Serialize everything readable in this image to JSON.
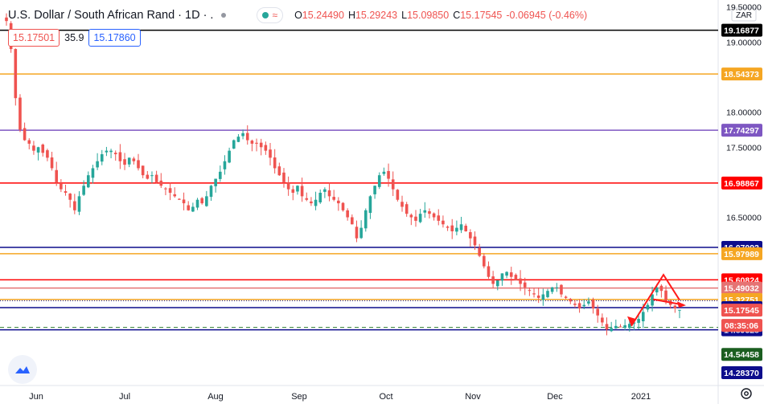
{
  "header": {
    "title": "U.S. Dollar / South African Rand · 1D · .",
    "open_label": "O",
    "open": "15.24490",
    "high_label": "H",
    "high": "15.29243",
    "low_label": "L",
    "low": "15.09850",
    "close_label": "C",
    "close": "15.17545",
    "change": "-0.06945 (-0.46%)"
  },
  "trade": {
    "sell": "15.17501",
    "spread": "35.9",
    "buy": "15.17860"
  },
  "currency_label": "ZAR",
  "colors": {
    "up": "#26a69a",
    "down": "#ef5350",
    "orange": "#f5a623",
    "red": "#ff0000",
    "navy": "#0d0d8c",
    "purple": "#7e57c2",
    "black": "#000000",
    "arrow": "#ff1a1a",
    "green_dash": "#2e7d32"
  },
  "chart_data": {
    "type": "candlestick",
    "title": "U.S. Dollar / South African Rand · 1D",
    "ylim": [
      14.1,
      19.6
    ],
    "y_ticks": [
      "19.50000",
      "19.00000",
      "18.00000",
      "17.50000",
      "16.50000"
    ],
    "x_ticks": [
      "Jun",
      "Jul",
      "Aug",
      "Sep",
      "Oct",
      "Nov",
      "Dec",
      "2021"
    ],
    "horizontal_levels": [
      {
        "value": 19.16877,
        "label": "19.16877",
        "color": "#000000",
        "width": 1.5
      },
      {
        "value": 18.54373,
        "label": "18.54373",
        "color": "#f5a623",
        "width": 1.5
      },
      {
        "value": 17.74297,
        "label": "17.74297",
        "color": "#7e57c2",
        "width": 1.5
      },
      {
        "value": 16.98867,
        "label": "16.98867",
        "color": "#ff0000",
        "width": 1.5
      },
      {
        "value": 16.07092,
        "label": "16.07092",
        "color": "#0d0d8c",
        "width": 1.5
      },
      {
        "value": 15.97989,
        "label": "15.97989",
        "color": "#f5a623",
        "width": 1.5
      },
      {
        "value": 15.60824,
        "label": "15.60824",
        "color": "#ff0000",
        "width": 1.5
      },
      {
        "value": 15.49032,
        "label": "15.49032",
        "color": "#e57373",
        "width": 1.5
      },
      {
        "value": 15.32751,
        "label": "15.32751",
        "color": "#f5a623",
        "width": 1.5
      },
      {
        "value": 15.21122,
        "label": "15.21122",
        "color": "#0d0d8c",
        "width": 1.5
      },
      {
        "value": 14.89528,
        "label": "14.89528",
        "color": "#0d0d8c",
        "width": 1.5
      }
    ],
    "price_tags": [
      {
        "label": "15.17545",
        "value": 15.17545,
        "bg": "#ef5350",
        "fg": "#ffffff"
      },
      {
        "label": "08:35:06",
        "value": 14.99,
        "bg": "#ef5350",
        "fg": "#ffffff"
      },
      {
        "label": "14.54458",
        "value": 14.54458,
        "bg": "#1b5e20",
        "fg": "#ffffff"
      },
      {
        "label": "14.28370",
        "value": 14.2837,
        "bg": "#0d0d8c",
        "fg": "#ffffff"
      }
    ],
    "last_price": 15.17545,
    "last_price_dashed": 15.31,
    "ohlc_close": [
      19.3,
      18.9,
      18.2,
      17.75,
      17.6,
      17.55,
      17.45,
      17.5,
      17.42,
      17.35,
      17.2,
      17.0,
      16.9,
      16.85,
      16.75,
      16.6,
      16.8,
      16.95,
      17.1,
      17.2,
      17.3,
      17.4,
      17.45,
      17.45,
      17.4,
      17.3,
      17.25,
      17.35,
      17.3,
      17.2,
      17.1,
      17.05,
      17.1,
      17.0,
      16.95,
      16.9,
      16.85,
      16.8,
      16.75,
      16.7,
      16.6,
      16.65,
      16.75,
      16.7,
      16.8,
      16.95,
      17.05,
      17.15,
      17.3,
      17.45,
      17.6,
      17.65,
      17.7,
      17.6,
      17.55,
      17.55,
      17.5,
      17.45,
      17.35,
      17.2,
      17.1,
      17.0,
      16.9,
      16.85,
      16.95,
      16.8,
      16.75,
      16.7,
      16.75,
      16.85,
      16.9,
      16.8,
      16.75,
      16.7,
      16.6,
      16.5,
      16.4,
      16.2,
      16.35,
      16.6,
      16.8,
      16.95,
      17.1,
      17.15,
      17.05,
      16.9,
      16.75,
      16.65,
      16.55,
      16.5,
      16.45,
      16.55,
      16.6,
      16.55,
      16.5,
      16.45,
      16.4,
      16.35,
      16.3,
      16.35,
      16.4,
      16.3,
      16.2,
      16.1,
      15.95,
      15.8,
      15.65,
      15.55,
      15.6,
      15.7,
      15.72,
      15.65,
      15.6,
      15.55,
      15.5,
      15.45,
      15.4,
      15.35,
      15.4,
      15.45,
      15.5,
      15.5,
      15.4,
      15.35,
      15.3,
      15.25,
      15.2,
      15.25,
      15.3,
      15.2,
      15.1,
      15.0,
      14.9,
      14.92,
      14.95,
      14.93,
      14.96,
      14.98,
      15.0,
      15.05,
      15.15,
      15.25,
      15.4,
      15.5,
      15.45,
      15.3,
      15.25,
      15.2,
      15.18
    ],
    "annotations": [
      {
        "type": "arrow_path",
        "points": [
          [
            14.95,
            0
          ],
          [
            15.7,
            1
          ],
          [
            15.28,
            2
          ]
        ],
        "color": "#ff1a1a"
      },
      {
        "type": "arrow",
        "from": 15.33,
        "to": 15.25,
        "color": "#ff1a1a"
      }
    ]
  }
}
